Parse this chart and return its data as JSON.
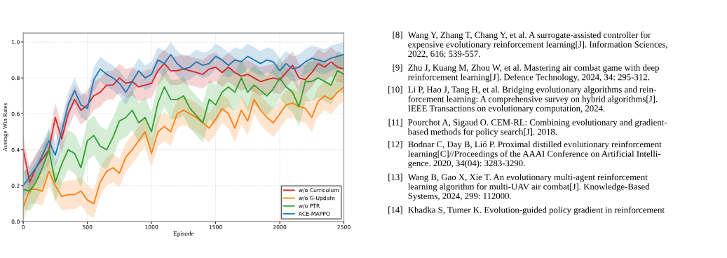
{
  "chart_data": {
    "type": "line",
    "xlabel": "Episode",
    "ylabel": "Average Win Rates",
    "x": [
      0,
      50,
      100,
      150,
      200,
      250,
      300,
      350,
      400,
      450,
      500,
      550,
      600,
      650,
      700,
      750,
      800,
      850,
      900,
      950,
      1000,
      1050,
      1100,
      1150,
      1200,
      1250,
      1300,
      1350,
      1400,
      1450,
      1500,
      1550,
      1600,
      1650,
      1700,
      1750,
      1800,
      1850,
      1900,
      1950,
      2000,
      2050,
      2100,
      2150,
      2200,
      2250,
      2300,
      2350,
      2400,
      2450,
      2500
    ],
    "xlim": [
      0,
      2500
    ],
    "xticks": [
      0,
      500,
      1000,
      1500,
      2000,
      2500
    ],
    "ylim": [
      0,
      1.05
    ],
    "yticks": [
      {
        "value": 0,
        "label": "0.0"
      },
      {
        "value": 0.2,
        "label": "0.2"
      },
      {
        "value": 0.4,
        "label": "0.4"
      },
      {
        "value": 0.6,
        "label": "0.6"
      },
      {
        "value": 0.8,
        "label": "0.8"
      },
      {
        "value": 1.0,
        "label": "1.0"
      }
    ],
    "grid": true,
    "legend": "bottom right",
    "line_style": "solid",
    "marker": "none",
    "series": [
      {
        "name": "w/o Curriculum",
        "color": "#d62728",
        "values": [
          0.4,
          0.22,
          0.3,
          0.35,
          0.4,
          0.58,
          0.46,
          0.6,
          0.68,
          0.62,
          0.65,
          0.7,
          0.72,
          0.76,
          0.76,
          0.8,
          0.77,
          0.78,
          0.75,
          0.76,
          0.77,
          0.84,
          0.88,
          0.84,
          0.84,
          0.85,
          0.84,
          0.83,
          0.82,
          0.85,
          0.86,
          0.83,
          0.86,
          0.83,
          0.81,
          0.82,
          0.8,
          0.78,
          0.79,
          0.8,
          0.79,
          0.83,
          0.87,
          0.8,
          0.79,
          0.83,
          0.88,
          0.86,
          0.89,
          0.86,
          0.85
        ],
        "lower": [
          0.32,
          0.14,
          0.22,
          0.27,
          0.32,
          0.5,
          0.38,
          0.52,
          0.6,
          0.54,
          0.57,
          0.62,
          0.64,
          0.68,
          0.68,
          0.72,
          0.69,
          0.7,
          0.67,
          0.68,
          0.69,
          0.76,
          0.8,
          0.76,
          0.76,
          0.77,
          0.76,
          0.75,
          0.74,
          0.77,
          0.78,
          0.75,
          0.78,
          0.75,
          0.73,
          0.74,
          0.72,
          0.7,
          0.71,
          0.72,
          0.71,
          0.75,
          0.79,
          0.72,
          0.71,
          0.75,
          0.8,
          0.78,
          0.81,
          0.78,
          0.77
        ],
        "upper": [
          0.48,
          0.3,
          0.38,
          0.43,
          0.48,
          0.66,
          0.54,
          0.68,
          0.76,
          0.7,
          0.73,
          0.78,
          0.8,
          0.84,
          0.84,
          0.88,
          0.85,
          0.86,
          0.83,
          0.84,
          0.85,
          0.92,
          0.96,
          0.92,
          0.92,
          0.93,
          0.92,
          0.91,
          0.9,
          0.93,
          0.94,
          0.91,
          0.94,
          0.91,
          0.89,
          0.9,
          0.88,
          0.86,
          0.87,
          0.88,
          0.87,
          0.91,
          0.95,
          0.88,
          0.87,
          0.91,
          0.96,
          0.94,
          0.97,
          0.94,
          0.93
        ]
      },
      {
        "name": "w/o G-Update",
        "color": "#ff7f0e",
        "values": [
          0.08,
          0.18,
          0.18,
          0.17,
          0.28,
          0.2,
          0.14,
          0.15,
          0.15,
          0.17,
          0.12,
          0.1,
          0.22,
          0.28,
          0.3,
          0.27,
          0.36,
          0.4,
          0.45,
          0.5,
          0.38,
          0.5,
          0.53,
          0.5,
          0.6,
          0.62,
          0.6,
          0.58,
          0.55,
          0.52,
          0.57,
          0.63,
          0.6,
          0.52,
          0.62,
          0.56,
          0.68,
          0.62,
          0.58,
          0.55,
          0.6,
          0.65,
          0.66,
          0.64,
          0.63,
          0.58,
          0.67,
          0.7,
          0.68,
          0.72,
          0.75
        ],
        "lower": [
          0.0,
          0.1,
          0.1,
          0.09,
          0.2,
          0.12,
          0.06,
          0.07,
          0.07,
          0.09,
          0.04,
          0.02,
          0.14,
          0.2,
          0.22,
          0.19,
          0.28,
          0.32,
          0.37,
          0.42,
          0.3,
          0.42,
          0.45,
          0.42,
          0.52,
          0.54,
          0.52,
          0.5,
          0.47,
          0.44,
          0.49,
          0.55,
          0.52,
          0.44,
          0.54,
          0.48,
          0.6,
          0.54,
          0.5,
          0.47,
          0.52,
          0.57,
          0.58,
          0.56,
          0.55,
          0.5,
          0.59,
          0.62,
          0.6,
          0.64,
          0.67
        ],
        "upper": [
          0.16,
          0.26,
          0.26,
          0.25,
          0.36,
          0.28,
          0.22,
          0.23,
          0.23,
          0.25,
          0.2,
          0.18,
          0.3,
          0.36,
          0.38,
          0.35,
          0.44,
          0.48,
          0.53,
          0.58,
          0.46,
          0.58,
          0.61,
          0.58,
          0.68,
          0.7,
          0.68,
          0.66,
          0.63,
          0.6,
          0.65,
          0.71,
          0.68,
          0.6,
          0.7,
          0.64,
          0.76,
          0.7,
          0.66,
          0.63,
          0.68,
          0.73,
          0.74,
          0.72,
          0.71,
          0.66,
          0.75,
          0.78,
          0.76,
          0.8,
          0.83
        ]
      },
      {
        "name": "w/o PTR",
        "color": "#2ca02c",
        "values": [
          0.18,
          0.17,
          0.22,
          0.3,
          0.4,
          0.22,
          0.32,
          0.4,
          0.38,
          0.3,
          0.45,
          0.48,
          0.42,
          0.4,
          0.47,
          0.56,
          0.58,
          0.62,
          0.55,
          0.58,
          0.5,
          0.66,
          0.75,
          0.68,
          0.68,
          0.7,
          0.63,
          0.59,
          0.55,
          0.68,
          0.65,
          0.72,
          0.75,
          0.72,
          0.8,
          0.72,
          0.76,
          0.73,
          0.7,
          0.74,
          0.8,
          0.75,
          0.72,
          0.64,
          0.78,
          0.78,
          0.8,
          0.78,
          0.76,
          0.84,
          0.82
        ],
        "lower": [
          0.07,
          0.06,
          0.11,
          0.19,
          0.29,
          0.11,
          0.21,
          0.29,
          0.27,
          0.19,
          0.34,
          0.37,
          0.31,
          0.29,
          0.36,
          0.45,
          0.47,
          0.51,
          0.44,
          0.47,
          0.39,
          0.55,
          0.64,
          0.57,
          0.57,
          0.59,
          0.52,
          0.48,
          0.44,
          0.57,
          0.54,
          0.61,
          0.64,
          0.61,
          0.69,
          0.61,
          0.65,
          0.62,
          0.59,
          0.63,
          0.69,
          0.64,
          0.61,
          0.53,
          0.67,
          0.67,
          0.69,
          0.67,
          0.65,
          0.73,
          0.71
        ],
        "upper": [
          0.29,
          0.28,
          0.33,
          0.41,
          0.51,
          0.33,
          0.43,
          0.51,
          0.49,
          0.41,
          0.56,
          0.59,
          0.53,
          0.51,
          0.58,
          0.67,
          0.69,
          0.73,
          0.66,
          0.69,
          0.61,
          0.77,
          0.86,
          0.79,
          0.79,
          0.81,
          0.74,
          0.7,
          0.66,
          0.79,
          0.76,
          0.83,
          0.86,
          0.83,
          0.91,
          0.83,
          0.87,
          0.84,
          0.81,
          0.85,
          0.91,
          0.86,
          0.83,
          0.75,
          0.89,
          0.89,
          0.91,
          0.89,
          0.87,
          0.95,
          0.93
        ]
      },
      {
        "name": "ACE-MAPPO",
        "color": "#1f77b4",
        "values": [
          0.2,
          0.25,
          0.3,
          0.37,
          0.45,
          0.37,
          0.5,
          0.65,
          0.73,
          0.65,
          0.63,
          0.79,
          0.85,
          0.82,
          0.8,
          0.77,
          0.72,
          0.78,
          0.84,
          0.8,
          0.82,
          0.9,
          0.88,
          0.93,
          0.88,
          0.85,
          0.86,
          0.89,
          0.87,
          0.88,
          0.92,
          0.9,
          0.87,
          0.9,
          0.89,
          0.92,
          0.9,
          0.88,
          0.9,
          0.89,
          0.84,
          0.88,
          0.85,
          0.86,
          0.89,
          0.91,
          0.9,
          0.89,
          0.91,
          0.92,
          0.93
        ],
        "lower": [
          0.13,
          0.18,
          0.23,
          0.3,
          0.38,
          0.3,
          0.43,
          0.58,
          0.66,
          0.58,
          0.56,
          0.72,
          0.78,
          0.75,
          0.73,
          0.7,
          0.65,
          0.71,
          0.77,
          0.73,
          0.75,
          0.83,
          0.81,
          0.86,
          0.81,
          0.78,
          0.79,
          0.82,
          0.8,
          0.81,
          0.85,
          0.83,
          0.8,
          0.83,
          0.82,
          0.85,
          0.83,
          0.81,
          0.83,
          0.82,
          0.77,
          0.81,
          0.78,
          0.79,
          0.82,
          0.84,
          0.83,
          0.82,
          0.84,
          0.85,
          0.86
        ],
        "upper": [
          0.27,
          0.32,
          0.37,
          0.44,
          0.52,
          0.44,
          0.57,
          0.72,
          0.8,
          0.72,
          0.7,
          0.86,
          0.92,
          0.89,
          0.87,
          0.84,
          0.79,
          0.85,
          0.91,
          0.87,
          0.89,
          0.97,
          0.95,
          1.0,
          0.95,
          0.92,
          0.93,
          0.96,
          0.94,
          0.95,
          0.99,
          0.97,
          0.94,
          0.97,
          0.96,
          0.99,
          0.97,
          0.95,
          0.97,
          0.96,
          0.91,
          0.95,
          0.92,
          0.93,
          0.96,
          0.98,
          0.97,
          0.96,
          0.98,
          0.99,
          1.0
        ]
      }
    ],
    "annotations": [
      "[8] Wang Y, Zhang T, Chang Y, et al. A surrogate-assisted controller for\nexpensive evolutionary reinforcement learning[J]. Information Sciences,\n2022, 616: 539-557.",
      "[9] Zhu J, Kuang M, Zhou W, et al. Mastering air combat game with deep\nreinforcement learning[J]. Defence Technology, 2024, 34: 295-312.",
      "[10] Li P, Hao J, Tang H, et al. Bridging evolutionary algorithms and rein-\nforcement learning: A comprehensive survey on hybrid algorithms[J].\nIEEE Transactions on evolutionary computation, 2024.",
      "[11] Pourchot A, Sigaud O. CEM-RL: Combining evolutionary and gradient-\nbased methods for policy search[J]. 2018.",
      "[12] Bodnar C, Day B, Lió P. Proximal distilled evolutionary reinforcement\nlearning[C]//Proceedings of the AAAI Conference on Artificial Intelli-\ngence. 2020, 34(04): 3283-3290.",
      "[13] Wang B, Gao X, Xie T. An evolutionary multi-agent reinforcement\nlearning algorithm for multi-UAV air combat[J]. Knowledge-Based\nSystems, 2024, 299: 112000.",
      "[14] Khadka S, Tumer K. Evolution-guided policy gradient in reinforcement"
    ]
  }
}
